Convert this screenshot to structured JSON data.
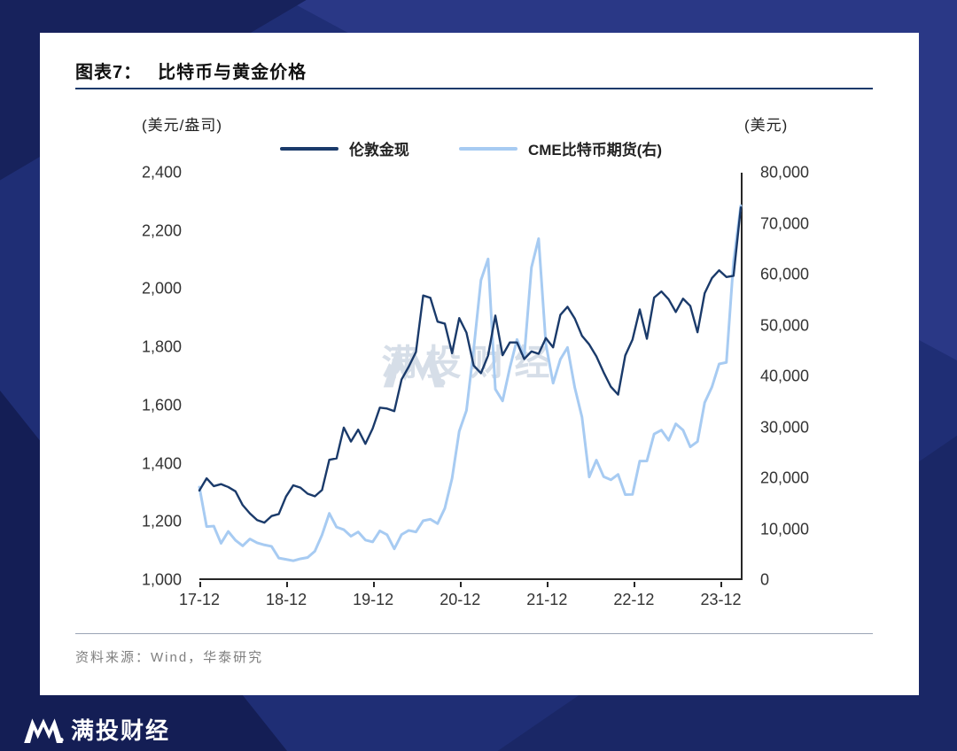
{
  "figure": {
    "label": "图表7：",
    "title": "比特币与黄金价格",
    "source": "资料来源：Wind，华泰研究"
  },
  "brand": {
    "watermark_text": "满投财经",
    "footer_text": "满投财经",
    "background_navy": "#1f2e75",
    "card_background": "#ffffff"
  },
  "chart_data": {
    "type": "line",
    "title": "比特币与黄金价格",
    "legend_position": "top-center",
    "grid": false,
    "x_months": [
      "2017-12",
      "2018-01",
      "2018-02",
      "2018-03",
      "2018-04",
      "2018-05",
      "2018-06",
      "2018-07",
      "2018-08",
      "2018-09",
      "2018-10",
      "2018-11",
      "2018-12",
      "2019-01",
      "2019-02",
      "2019-03",
      "2019-04",
      "2019-05",
      "2019-06",
      "2019-07",
      "2019-08",
      "2019-09",
      "2019-10",
      "2019-11",
      "2019-12",
      "2020-01",
      "2020-02",
      "2020-03",
      "2020-04",
      "2020-05",
      "2020-06",
      "2020-07",
      "2020-08",
      "2020-09",
      "2020-10",
      "2020-11",
      "2020-12",
      "2021-01",
      "2021-02",
      "2021-03",
      "2021-04",
      "2021-05",
      "2021-06",
      "2021-07",
      "2021-08",
      "2021-09",
      "2021-10",
      "2021-11",
      "2021-12",
      "2022-01",
      "2022-02",
      "2022-03",
      "2022-04",
      "2022-05",
      "2022-06",
      "2022-07",
      "2022-08",
      "2022-09",
      "2022-10",
      "2022-11",
      "2022-12",
      "2023-01",
      "2023-02",
      "2023-03",
      "2023-04",
      "2023-05",
      "2023-06",
      "2023-07",
      "2023-08",
      "2023-09",
      "2023-10",
      "2023-11",
      "2023-12",
      "2024-01",
      "2024-02",
      "2024-03"
    ],
    "x_tick_labels": [
      "17-12",
      "18-12",
      "19-12",
      "20-12",
      "21-12",
      "22-12",
      "23-12"
    ],
    "x_tick_month_index": [
      0,
      12,
      24,
      36,
      48,
      60,
      72
    ],
    "left_axis": {
      "label": "(美元/盎司)",
      "min": 1000,
      "max": 2400,
      "ticks": [
        "2,400",
        "2,200",
        "2,000",
        "1,800",
        "1,600",
        "1,400",
        "1,200",
        "1,000"
      ]
    },
    "right_axis": {
      "label": "(美元)",
      "min": 0,
      "max": 80000,
      "ticks": [
        "80,000",
        "70,000",
        "60,000",
        "50,000",
        "40,000",
        "30,000",
        "20,000",
        "10,000",
        "0"
      ]
    },
    "series": [
      {
        "name": "伦敦金现",
        "axis": "left",
        "color": "#1a3a6a",
        "stroke_width": 2.4,
        "values": [
          1303,
          1345,
          1318,
          1325,
          1315,
          1300,
          1253,
          1224,
          1201,
          1192,
          1215,
          1222,
          1282,
          1321,
          1313,
          1292,
          1283,
          1305,
          1409,
          1414,
          1520,
          1472,
          1513,
          1464,
          1517,
          1589,
          1586,
          1577,
          1686,
          1730,
          1781,
          1976,
          1968,
          1886,
          1879,
          1777,
          1898,
          1848,
          1734,
          1708,
          1769,
          1907,
          1770,
          1814,
          1814,
          1757,
          1783,
          1775,
          1829,
          1797,
          1909,
          1937,
          1897,
          1837,
          1807,
          1766,
          1711,
          1661,
          1634,
          1769,
          1824,
          1928,
          1827,
          1969,
          1990,
          1963,
          1919,
          1965,
          1940,
          1849,
          1984,
          2036,
          2063,
          2040,
          2044,
          2280
        ]
      },
      {
        "name": "CME比特币期货(右)",
        "axis": "right",
        "color": "#a7cbf2",
        "stroke_width": 3,
        "values": [
          18000,
          10200,
          10300,
          6900,
          9240,
          7500,
          6400,
          7750,
          7000,
          6600,
          6300,
          4000,
          3740,
          3460,
          3850,
          4100,
          5350,
          8580,
          12800,
          10100,
          9600,
          8300,
          9150,
          7550,
          7190,
          9350,
          8600,
          5800,
          8620,
          9450,
          9140,
          11350,
          11650,
          10780,
          13800,
          19700,
          29000,
          33100,
          45200,
          58800,
          63000,
          37300,
          35000,
          41500,
          47100,
          43800,
          61300,
          67000,
          46200,
          38480,
          43190,
          45530,
          37650,
          31790,
          19985,
          23300,
          20050,
          19430,
          20490,
          16500,
          16540,
          23130,
          23140,
          28470,
          29230,
          27220,
          30470,
          29230,
          25930,
          26970,
          34650,
          37720,
          42270,
          42580,
          62500,
          73500
        ]
      }
    ]
  }
}
